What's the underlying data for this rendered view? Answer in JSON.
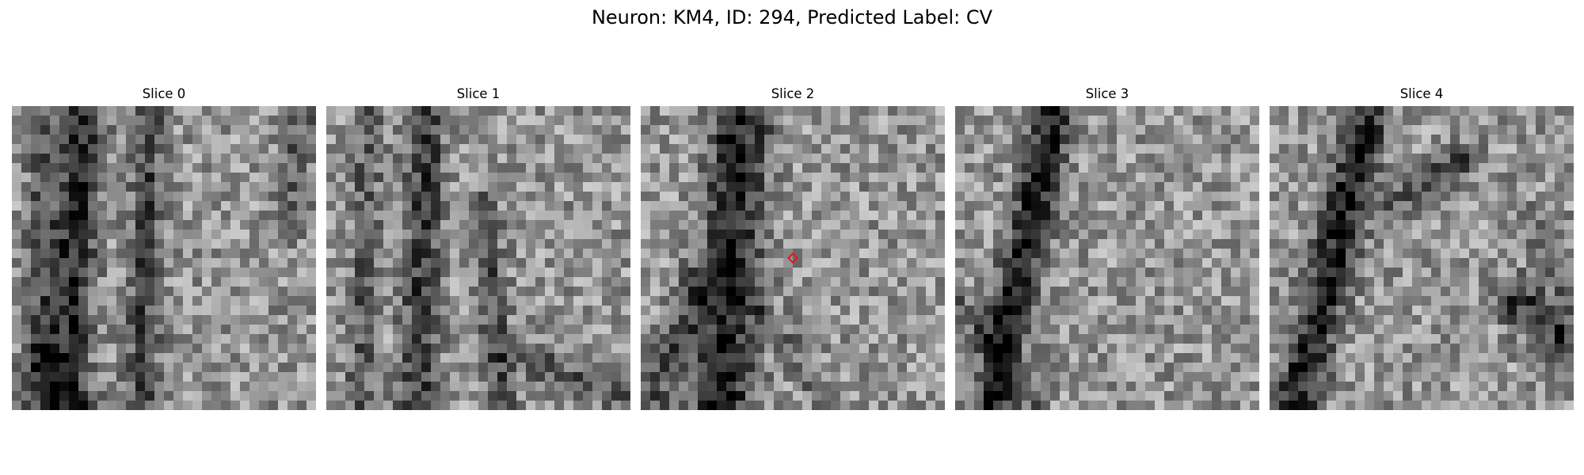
{
  "figure": {
    "title": "Neuron: KM4, ID: 294, Predicted Label: CV"
  },
  "slices": [
    {
      "label": "Slice 0"
    },
    {
      "label": "Slice 1"
    },
    {
      "label": "Slice 2",
      "marked": true
    },
    {
      "label": "Slice 3"
    },
    {
      "label": "Slice 4"
    }
  ],
  "marker": {
    "color": "#e8141c",
    "shape": "diamond-outline"
  },
  "colormap": "grayscale"
}
